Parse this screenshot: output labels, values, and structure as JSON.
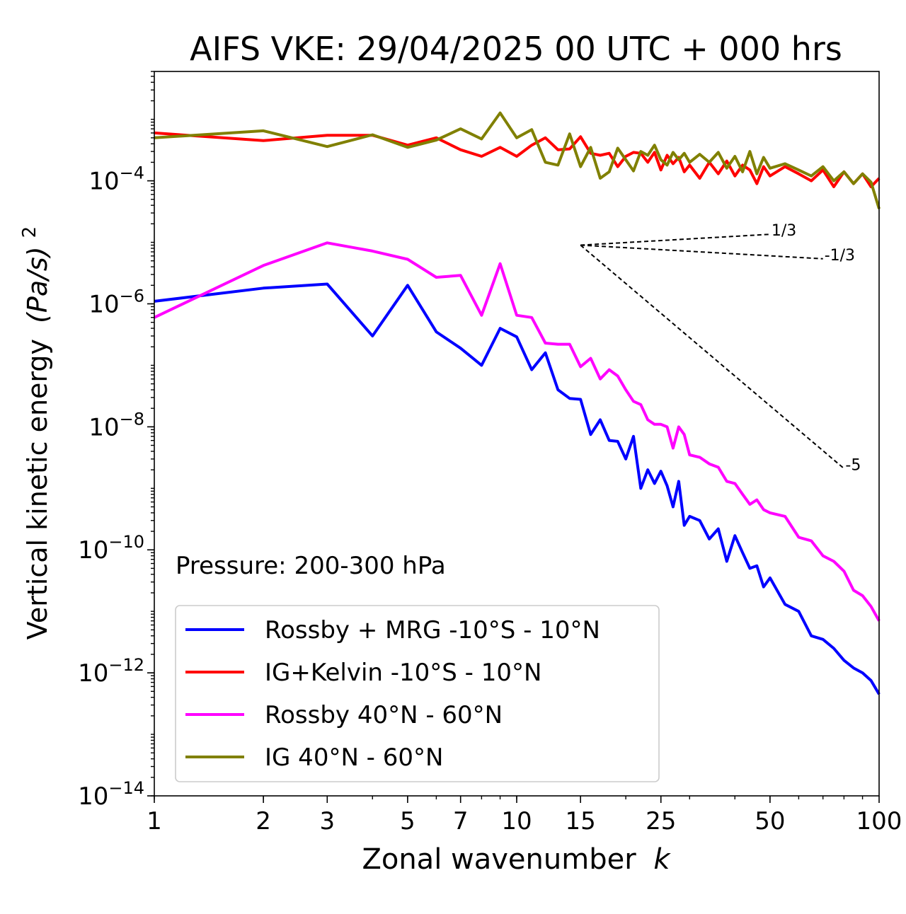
{
  "chart_data": {
    "type": "line",
    "title": "AIFS VKE: 29/04/2025 00 UTC + 000 hrs",
    "xlabel": "Zonal wavenumber",
    "xlabel_var": "k",
    "ylabel": "Vertical kinetic energy",
    "ylabel_unit": "(Pa/s)",
    "ylabel_exp": "2",
    "xscale": "log",
    "yscale": "log",
    "xlim": [
      1,
      100
    ],
    "ylim": [
      1e-14,
      0.006
    ],
    "xticks": [
      1,
      2,
      3,
      5,
      7,
      10,
      15,
      25,
      50,
      100
    ],
    "xtick_labels": [
      "1",
      "2",
      "3",
      "5",
      "7",
      "10",
      "15",
      "25",
      "50",
      "100"
    ],
    "yticks": [
      1e-14,
      1e-12,
      1e-10,
      1e-08,
      1e-06,
      0.0001
    ],
    "ytick_labels": [
      {
        "base": "10",
        "exp": "−14"
      },
      {
        "base": "10",
        "exp": "−12"
      },
      {
        "base": "10",
        "exp": "−10"
      },
      {
        "base": "10",
        "exp": "−8"
      },
      {
        "base": "10",
        "exp": "−6"
      },
      {
        "base": "10",
        "exp": "−4"
      }
    ],
    "grid": false,
    "annotation": "Pressure: 200-300 hPa",
    "legend_position": "lower-left",
    "reference_slopes": [
      {
        "label": "1/3",
        "x0": 15,
        "y0": 9e-06,
        "x1": 50,
        "y1": 1.35e-05
      },
      {
        "label": "-1/3",
        "x0": 15,
        "y0": 9e-06,
        "x1": 70,
        "y1": 5.4e-06
      },
      {
        "label": "-5",
        "x0": 15,
        "y0": 9e-06,
        "x1": 80,
        "y1": 2.1e-09
      }
    ],
    "series": [
      {
        "name": "Rossby + MRG -10°S - 10°N",
        "color": "#0000ff",
        "x": [
          1,
          2,
          3,
          4,
          5,
          6,
          7,
          8,
          9,
          10,
          11,
          12,
          13,
          14,
          15,
          16,
          17,
          18,
          19,
          20,
          21,
          22,
          23,
          24,
          25,
          26,
          27,
          28,
          29,
          30,
          32,
          34,
          36,
          38,
          40,
          42,
          44,
          46,
          48,
          50,
          55,
          60,
          65,
          70,
          75,
          80,
          85,
          90,
          95,
          100
        ],
        "y": [
          1.1e-06,
          1.8e-06,
          2.1e-06,
          3e-07,
          2e-06,
          3.5e-07,
          1.9e-07,
          1e-07,
          4e-07,
          2.9e-07,
          8.5e-08,
          1.6e-07,
          4e-08,
          2.9e-08,
          2.8e-08,
          7.5e-09,
          1.3e-08,
          6e-09,
          5.8e-09,
          3e-09,
          7e-09,
          1e-09,
          2e-09,
          1.2e-09,
          1.9e-09,
          1.1e-09,
          5e-10,
          1.3e-09,
          2.5e-10,
          3.5e-10,
          3e-10,
          1.5e-10,
          2.2e-10,
          6.5e-11,
          1.7e-10,
          9e-11,
          5e-11,
          5.5e-11,
          2.5e-11,
          3.5e-11,
          1.3e-11,
          1e-11,
          4e-12,
          3.5e-12,
          2.5e-12,
          1.6e-12,
          1.2e-12,
          1e-12,
          7.5e-13,
          4.5e-13
        ]
      },
      {
        "name": "IG+Kelvin -10°S - 10°N",
        "color": "#ff0000",
        "x": [
          1,
          2,
          3,
          4,
          5,
          6,
          7,
          8,
          9,
          10,
          11,
          12,
          13,
          14,
          15,
          16,
          17,
          18,
          19,
          20,
          21,
          22,
          23,
          24,
          25,
          26,
          27,
          28,
          29,
          30,
          32,
          34,
          36,
          38,
          40,
          42,
          44,
          46,
          48,
          50,
          55,
          60,
          65,
          70,
          75,
          80,
          85,
          90,
          95,
          100
        ],
        "y": [
          0.0006,
          0.00045,
          0.00055,
          0.00055,
          0.00038,
          0.0005,
          0.00032,
          0.00025,
          0.00035,
          0.00025,
          0.00038,
          0.0005,
          0.00032,
          0.00033,
          0.00052,
          0.00028,
          0.00026,
          0.00028,
          0.00017,
          0.00025,
          0.00029,
          0.00028,
          0.0002,
          0.00029,
          0.00015,
          0.00026,
          0.00019,
          0.00024,
          0.00014,
          0.00018,
          0.00011,
          0.0002,
          0.00013,
          0.00021,
          0.00012,
          0.00018,
          0.00015,
          9e-05,
          0.00017,
          0.00012,
          0.00017,
          0.00013,
          0.0001,
          0.00015,
          8e-05,
          0.00014,
          9e-05,
          0.00013,
          8e-05,
          0.00011
        ]
      },
      {
        "name": "Rossby 40°N - 60°N",
        "color": "#ff00ff",
        "x": [
          1,
          2,
          3,
          4,
          5,
          6,
          7,
          8,
          9,
          10,
          11,
          12,
          13,
          14,
          15,
          16,
          17,
          18,
          19,
          20,
          21,
          22,
          23,
          24,
          25,
          26,
          27,
          28,
          29,
          30,
          32,
          34,
          36,
          38,
          40,
          42,
          44,
          46,
          48,
          50,
          55,
          60,
          65,
          70,
          75,
          80,
          85,
          90,
          95,
          100
        ],
        "y": [
          6e-07,
          4.2e-06,
          9.8e-06,
          7.2e-06,
          5.3e-06,
          2.7e-06,
          2.9e-06,
          6.5e-07,
          4.5e-06,
          6.5e-07,
          6e-07,
          2.3e-07,
          2.2e-07,
          2.2e-07,
          9.5e-08,
          1.3e-07,
          6e-08,
          8.5e-08,
          6.7e-08,
          4e-08,
          2.6e-08,
          2.3e-08,
          1.3e-08,
          1.1e-08,
          1.1e-08,
          1e-08,
          4.5e-09,
          1e-08,
          7.5e-09,
          3.5e-09,
          3.2e-09,
          2.5e-09,
          2.2e-09,
          1.3e-09,
          1.2e-09,
          8e-10,
          5.5e-10,
          6.5e-10,
          4.5e-10,
          4e-10,
          3.5e-10,
          1.6e-10,
          1.4e-10,
          8e-11,
          6.5e-11,
          4.5e-11,
          2.2e-11,
          1.8e-11,
          1.2e-11,
          7e-12
        ]
      },
      {
        "name": "IG 40°N - 60°N",
        "color": "#808000",
        "x": [
          1,
          2,
          3,
          4,
          5,
          6,
          7,
          8,
          9,
          10,
          11,
          12,
          13,
          14,
          15,
          16,
          17,
          18,
          19,
          20,
          21,
          22,
          23,
          24,
          25,
          26,
          27,
          28,
          29,
          30,
          32,
          34,
          36,
          38,
          40,
          42,
          44,
          46,
          48,
          50,
          55,
          60,
          65,
          70,
          75,
          80,
          85,
          90,
          95,
          100
        ],
        "y": [
          0.0005,
          0.00065,
          0.00036,
          0.00056,
          0.00035,
          0.00046,
          0.0007,
          0.00048,
          0.00127,
          0.0005,
          0.00068,
          0.0002,
          0.00018,
          0.00058,
          0.00017,
          0.00035,
          0.00011,
          0.00014,
          0.00034,
          0.00022,
          0.000145,
          0.0003,
          0.00026,
          0.00038,
          0.00022,
          0.00018,
          0.00029,
          0.00022,
          0.00028,
          0.0002,
          0.00027,
          0.0002,
          0.00029,
          0.00016,
          0.00025,
          0.00014,
          0.0003,
          0.00013,
          0.00024,
          0.00016,
          0.00019,
          0.00015,
          0.00012,
          0.00017,
          0.0001,
          0.00014,
          9e-05,
          0.00013,
          9.5e-05,
          3.5e-05
        ]
      }
    ]
  }
}
